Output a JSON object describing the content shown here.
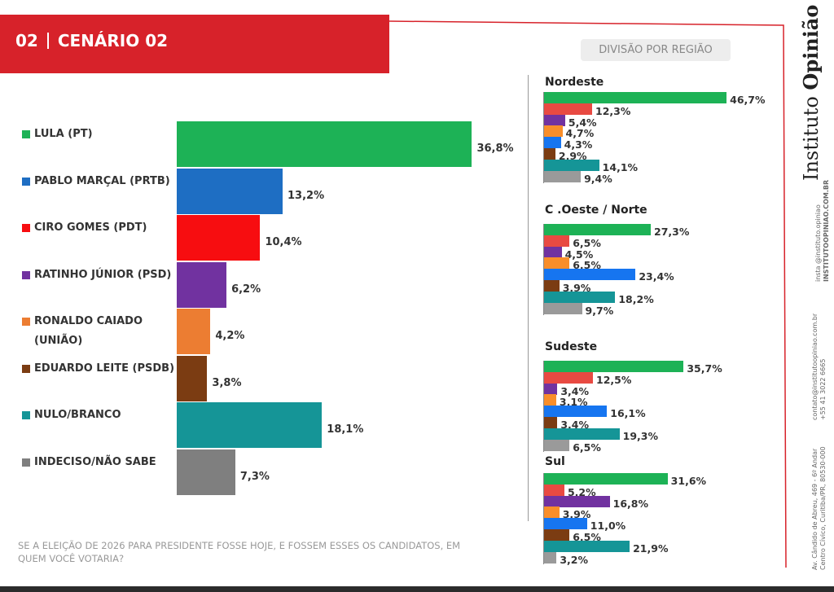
{
  "header": {
    "number": "02",
    "title": "CENÁRIO 02"
  },
  "region_pill": "DIVISÃO POR REGIÃO",
  "question": "SE A ELEIÇÃO DE 2026 PARA PRESIDENTE FOSSE HOJE, E FOSSEM ESSES OS CANDIDATOS, EM QUEM VOCÊ VOTARIA?",
  "brand": {
    "light": "Instituto",
    "bold": "Opinião"
  },
  "contact": {
    "insta": "insta @instituto.opiniao",
    "site_bold": "INSTITUTOOPINIAO.COM.BR",
    "email": "contato@institutoopiniao.com.br",
    "phone": "+55 41 3022 6665",
    "address1": "Av. Cândido de Abreu, 469 - 6º Andar",
    "address2": "Centro Cívico, Curitiba/PR, 80530-000"
  },
  "chart_data": [
    {
      "type": "bar",
      "orientation": "horizontal",
      "categories": [
        "LULA (PT)",
        "PABLO MARÇAL (PRTB)",
        "CIRO GOMES (PDT)",
        "RATINHO JÚNIOR (PSD)",
        "RONALDO CAIADO (UNIÃO)",
        "EDUARDO LEITE (PSDB)",
        "NULO/BRANCO",
        "INDECISO/NÃO SABE"
      ],
      "label_lines": [
        [
          "LULA (PT)"
        ],
        [
          "PABLO MARÇAL (PRTB)"
        ],
        [
          "CIRO GOMES (PDT)"
        ],
        [
          "RATINHO JÚNIOR (PSD)"
        ],
        [
          "RONALDO CAIADO",
          "(UNIÃO)"
        ],
        [
          "EDUARDO LEITE (PSDB)"
        ],
        [
          "NULO/BRANCO"
        ],
        [
          "INDECISO/NÃO SABE"
        ]
      ],
      "values": [
        36.8,
        13.2,
        10.4,
        6.2,
        4.2,
        3.8,
        18.1,
        7.3
      ],
      "value_labels": [
        "36,8%",
        "13,2%",
        "10,4%",
        "6,2%",
        "4,2%",
        "3,8%",
        "18,1%",
        "7,3%"
      ],
      "colors": [
        "#1db256",
        "#1e6ec3",
        "#f70d10",
        "#7132a0",
        "#ec7d32",
        "#7b3c12",
        "#159597",
        "#7f7f7f"
      ]
    },
    {
      "type": "bar",
      "orientation": "horizontal",
      "title": "Nordeste",
      "categories": [
        "LULA (PT)",
        "CIRO GOMES (PDT)",
        "RATINHO JÚNIOR (PSD)",
        "RONALDO CAIADO (UNIÃO)",
        "PABLO MARÇAL (PRTB)",
        "EDUARDO LEITE (PSDB)",
        "NULO/BRANCO",
        "INDECISO/NÃO SABE"
      ],
      "values": [
        46.7,
        12.3,
        5.4,
        4.7,
        4.3,
        2.9,
        14.1,
        9.4
      ],
      "value_labels": [
        "46,7%",
        "12,3%",
        "5,4%",
        "4,7%",
        "4,3%",
        "2,9%",
        "14,1%",
        "9,4%"
      ],
      "colors": [
        "#1db256",
        "#e84a42",
        "#7132a0",
        "#f98e2a",
        "#1675f0",
        "#7b3c12",
        "#159597",
        "#9a9a9a"
      ]
    },
    {
      "type": "bar",
      "orientation": "horizontal",
      "title": "C .Oeste / Norte",
      "categories": [
        "LULA (PT)",
        "CIRO GOMES (PDT)",
        "RATINHO JÚNIOR (PSD)",
        "RONALDO CAIADO (UNIÃO)",
        "PABLO MARÇAL (PRTB)",
        "EDUARDO LEITE (PSDB)",
        "NULO/BRANCO",
        "INDECISO/NÃO SABE"
      ],
      "values": [
        27.3,
        6.5,
        4.5,
        6.5,
        23.4,
        3.9,
        18.2,
        9.7
      ],
      "value_labels": [
        "27,3%",
        "6,5%",
        "4,5%",
        "6,5%",
        "23,4%",
        "3,9%",
        "18,2%",
        "9,7%"
      ],
      "colors": [
        "#1db256",
        "#e84a42",
        "#7132a0",
        "#f98e2a",
        "#1675f0",
        "#7b3c12",
        "#159597",
        "#9a9a9a"
      ]
    },
    {
      "type": "bar",
      "orientation": "horizontal",
      "title": "Sudeste",
      "categories": [
        "LULA (PT)",
        "CIRO GOMES (PDT)",
        "RATINHO JÚNIOR (PSD)",
        "RONALDO CAIADO (UNIÃO)",
        "PABLO MARÇAL (PRTB)",
        "EDUARDO LEITE (PSDB)",
        "NULO/BRANCO",
        "INDECISO/NÃO SABE"
      ],
      "values": [
        35.7,
        12.5,
        3.4,
        3.1,
        16.1,
        3.4,
        19.3,
        6.5
      ],
      "value_labels": [
        "35,7%",
        "12,5%",
        "3,4%",
        "3,1%",
        "16,1%",
        "3,4%",
        "19,3%",
        "6,5%"
      ],
      "colors": [
        "#1db256",
        "#e84a42",
        "#7132a0",
        "#f98e2a",
        "#1675f0",
        "#7b3c12",
        "#159597",
        "#9a9a9a"
      ]
    },
    {
      "type": "bar",
      "orientation": "horizontal",
      "title": "Sul",
      "categories": [
        "LULA (PT)",
        "CIRO GOMES (PDT)",
        "RATINHO JÚNIOR (PSD)",
        "RONALDO CAIADO (UNIÃO)",
        "PABLO MARÇAL (PRTB)",
        "EDUARDO LEITE (PSDB)",
        "NULO/BRANCO",
        "INDECISO/NÃO SABE"
      ],
      "values": [
        31.6,
        5.2,
        16.8,
        3.9,
        11.0,
        6.5,
        21.9,
        3.2
      ],
      "value_labels": [
        "31,6%",
        "5,2%",
        "16,8%",
        "3,9%",
        "11,0%",
        "6,5%",
        "21,9%",
        "3,2%"
      ],
      "colors": [
        "#1db256",
        "#e84a42",
        "#7132a0",
        "#f98e2a",
        "#1675f0",
        "#7b3c12",
        "#159597",
        "#9a9a9a"
      ]
    }
  ]
}
